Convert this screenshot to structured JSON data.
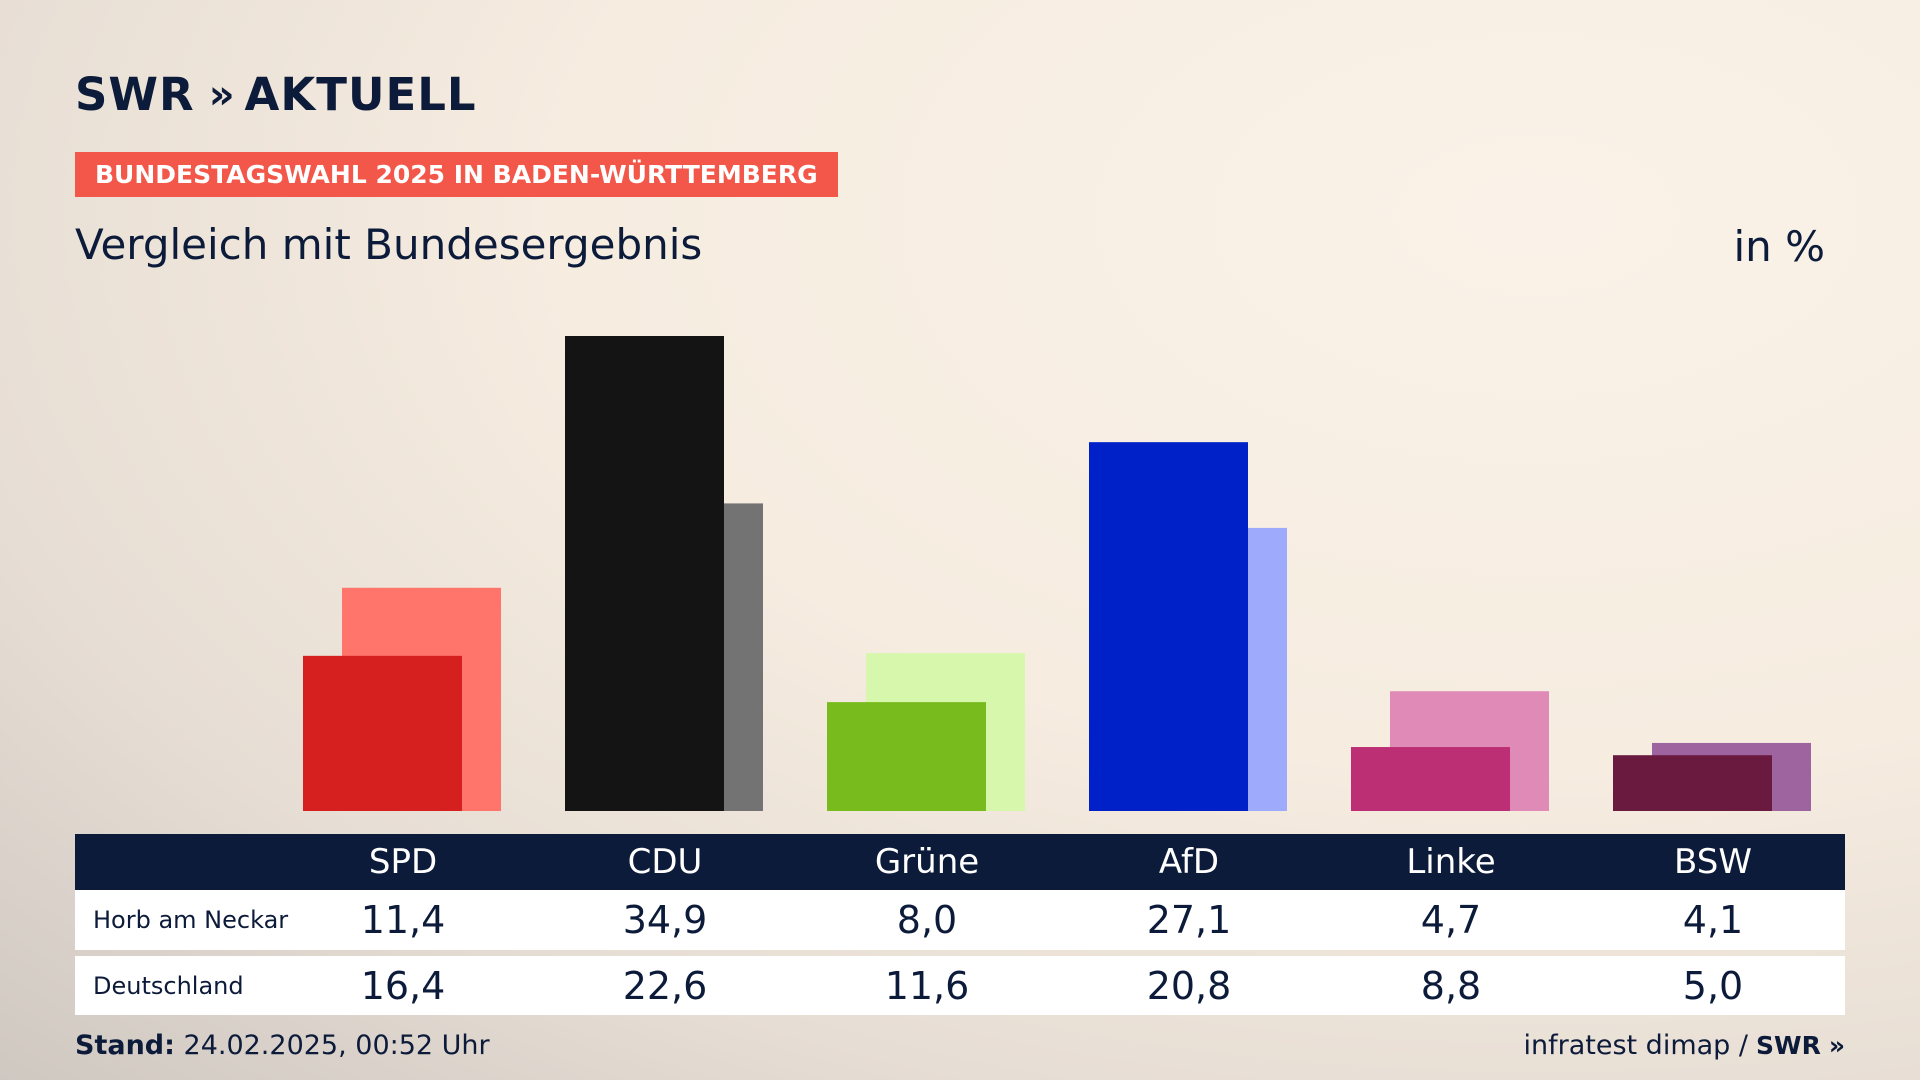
{
  "brand": {
    "logo_text": "SWR",
    "logo_suffix": "AKTUELL",
    "chevron": "»"
  },
  "topic": "BUNDESTAGSWAHL 2025 IN BADEN-WÜRTTEMBERG",
  "subtitle": "Vergleich mit Bundesergebnis",
  "unit": "in %",
  "footer": {
    "stand_label": "Stand:",
    "stand_value": "24.02.2025, 00:52 Uhr",
    "source": "infratest dimap /",
    "source_brand": "SWR"
  },
  "chart_data": {
    "type": "bar",
    "categories": [
      "SPD",
      "CDU",
      "Grüne",
      "AfD",
      "Linke",
      "BSW"
    ],
    "series": [
      {
        "name": "Horb am Neckar",
        "values": [
          11.4,
          34.9,
          8.0,
          27.1,
          4.7,
          4.1
        ]
      },
      {
        "name": "Deutschland",
        "values": [
          16.4,
          22.6,
          11.6,
          20.8,
          8.8,
          5.0
        ]
      }
    ],
    "value_labels": [
      [
        "11,4",
        "34,9",
        "8,0",
        "27,1",
        "4,7",
        "4,1"
      ],
      [
        "16,4",
        "22,6",
        "11,6",
        "20,8",
        "8,8",
        "5,0"
      ]
    ],
    "colors": {
      "primary": [
        "#d61f1f",
        "#141414",
        "#78bb1d",
        "#0021c8",
        "#bd2f74",
        "#6a1a3f"
      ],
      "secondary": [
        "#ff746b",
        "#737373",
        "#d7f7ad",
        "#9eaafc",
        "#e08ab7",
        "#9d64a0"
      ]
    },
    "ylim": [
      0,
      34.9
    ]
  }
}
